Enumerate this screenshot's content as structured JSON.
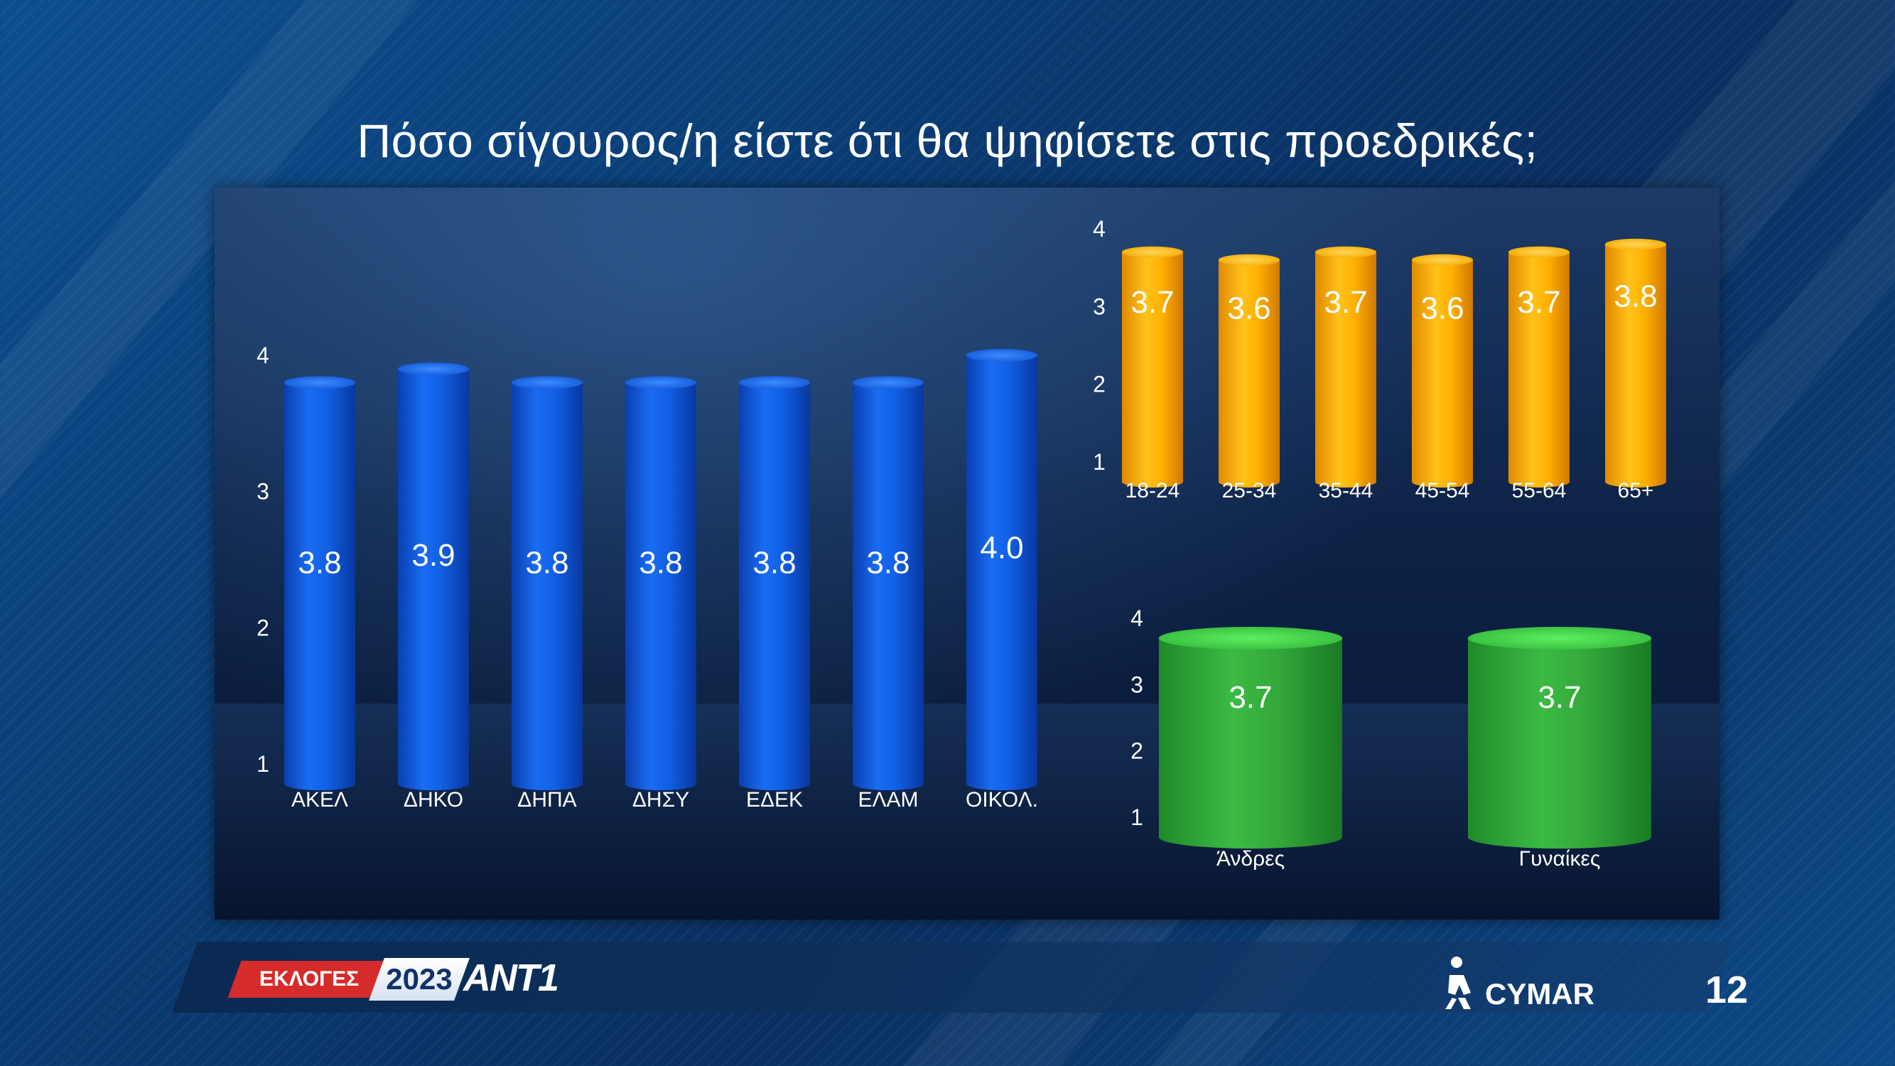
{
  "title": "Πόσο σίγουρος/η είστε ότι θα ψηφίσετε στις προεδρικές;",
  "colors": {
    "blue": "#1565e8",
    "orange": "#ffb300",
    "green": "#3fc447"
  },
  "chart_data": [
    {
      "type": "bar",
      "name": "party",
      "categories": [
        "ΑΚΕΛ",
        "ΔΗΚΟ",
        "ΔΗΠΑ",
        "ΔΗΣΥ",
        "ΕΔΕΚ",
        "ΕΛΑΜ",
        "ΟΙΚΟΛ."
      ],
      "values": [
        3.8,
        3.9,
        3.8,
        3.8,
        3.8,
        3.8,
        4.0
      ],
      "value_labels": [
        "3.8",
        "3.9",
        "3.8",
        "3.8",
        "3.8",
        "3.8",
        "4.0"
      ],
      "yticks": [
        "1",
        "2",
        "3",
        "4"
      ],
      "ylim": [
        1,
        4
      ],
      "bar_color": "#1565e8"
    },
    {
      "type": "bar",
      "name": "age",
      "categories": [
        "18-24",
        "25-34",
        "35-44",
        "45-54",
        "55-64",
        "65+"
      ],
      "values": [
        3.7,
        3.6,
        3.7,
        3.6,
        3.7,
        3.8
      ],
      "value_labels": [
        "3.7",
        "3.6",
        "3.7",
        "3.6",
        "3.7",
        "3.8"
      ],
      "yticks": [
        "1",
        "2",
        "3",
        "4"
      ],
      "ylim": [
        1,
        4
      ],
      "bar_color": "#ffb300"
    },
    {
      "type": "bar",
      "name": "gender",
      "categories": [
        "Άνδρες",
        "Γυναίκες"
      ],
      "values": [
        3.7,
        3.7
      ],
      "value_labels": [
        "3.7",
        "3.7"
      ],
      "yticks": [
        "1",
        "2",
        "3",
        "4"
      ],
      "ylim": [
        1,
        4
      ],
      "bar_color": "#3fc447"
    }
  ],
  "footer": {
    "logo_left": "ΕΚΛΟΓΕΣ",
    "logo_year": "2023",
    "logo_channel": "ANT1",
    "brand": "CYMAR",
    "page_number": "12"
  }
}
